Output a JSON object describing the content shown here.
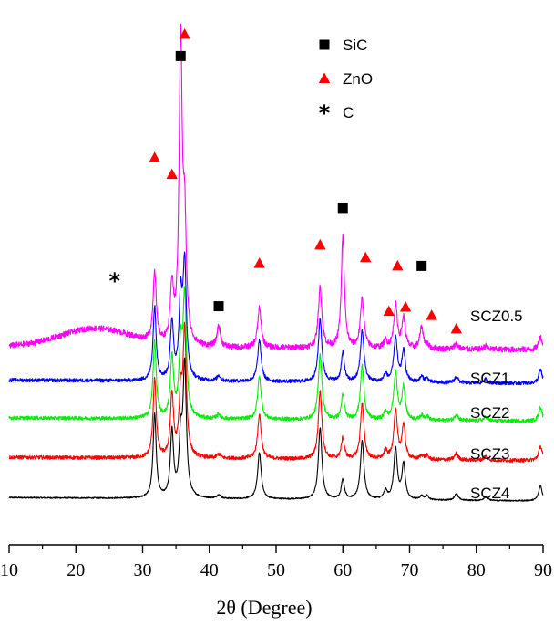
{
  "chart_data": {
    "type": "line",
    "title": "",
    "xlabel": "2θ (Degree)",
    "ylabel": "",
    "xlim": [
      10,
      90
    ],
    "xticks": [
      10,
      20,
      30,
      40,
      50,
      60,
      70,
      80,
      90
    ],
    "xtick_labels": [
      "10",
      "20",
      "30",
      "40",
      "50",
      "60",
      "70",
      "80",
      "90"
    ],
    "y_axis_visible": false,
    "grid": false,
    "legend_position": "top-right",
    "legend": [
      {
        "marker": "square",
        "label": "SiC",
        "color": "#000000"
      },
      {
        "marker": "triangle",
        "label": "ZnO",
        "color": "#ff0000"
      },
      {
        "marker": "asterisk",
        "label": "C",
        "color": "#000000"
      }
    ],
    "peaks": [
      {
        "pos": 31.8,
        "width": 0.28,
        "h": 1.0
      },
      {
        "pos": 34.4,
        "width": 0.28,
        "h": 0.78
      },
      {
        "pos": 35.7,
        "width": 0.28,
        "h": 0.7,
        "phase": "SiC"
      },
      {
        "pos": 36.3,
        "width": 0.3,
        "h": 1.55
      },
      {
        "pos": 41.4,
        "width": 0.3,
        "h": 0.05,
        "phase": "SiC"
      },
      {
        "pos": 47.5,
        "width": 0.32,
        "h": 0.55
      },
      {
        "pos": 56.6,
        "width": 0.32,
        "h": 0.85
      },
      {
        "pos": 60.0,
        "width": 0.28,
        "h": 0.26,
        "phase": "SiC"
      },
      {
        "pos": 62.9,
        "width": 0.32,
        "h": 0.7
      },
      {
        "pos": 66.4,
        "width": 0.3,
        "h": 0.1
      },
      {
        "pos": 67.9,
        "width": 0.32,
        "h": 0.6
      },
      {
        "pos": 69.1,
        "width": 0.3,
        "h": 0.42
      },
      {
        "pos": 71.8,
        "width": 0.3,
        "h": 0.05,
        "phase": "SiC"
      },
      {
        "pos": 72.6,
        "width": 0.3,
        "h": 0.05
      },
      {
        "pos": 77.0,
        "width": 0.32,
        "h": 0.08
      },
      {
        "pos": 81.4,
        "width": 0.32,
        "h": 0.05
      },
      {
        "pos": 89.6,
        "width": 0.32,
        "h": 0.18
      }
    ],
    "series": [
      {
        "name": "SCZ4",
        "color": "#000000",
        "offset": 0.0,
        "scale": 1.0,
        "noise": 0.008,
        "sic_factor": 0.9,
        "amorphous": 0.0
      },
      {
        "name": "SCZ3",
        "color": "#ff0000",
        "offset": 0.48,
        "scale": 0.95,
        "noise": 0.022,
        "sic_factor": 1.0,
        "amorphous": 0.0
      },
      {
        "name": "SCZ2",
        "color": "#00ee00",
        "offset": 0.95,
        "scale": 0.92,
        "noise": 0.022,
        "sic_factor": 1.2,
        "amorphous": 0.0
      },
      {
        "name": "SCZ1",
        "color": "#0000ff",
        "offset": 1.4,
        "scale": 0.88,
        "noise": 0.022,
        "sic_factor": 1.5,
        "amorphous": 0.0
      },
      {
        "name": "SCZ0.5",
        "color": "#ff00ff",
        "offset": 1.8,
        "scale": 0.85,
        "noise": 0.035,
        "sic_factor": 6.0,
        "amorphous": 0.22
      }
    ],
    "annotations": [
      {
        "marker": "square",
        "x": 35.7,
        "y": 5.3,
        "label": "SiC"
      },
      {
        "marker": "triangle",
        "x": 36.3,
        "y": 5.56,
        "label": "ZnO"
      },
      {
        "marker": "triangle",
        "x": 31.8,
        "y": 4.09,
        "label": "ZnO"
      },
      {
        "marker": "triangle",
        "x": 34.4,
        "y": 3.89,
        "label": "ZnO"
      },
      {
        "marker": "square",
        "x": 41.4,
        "y": 2.32,
        "label": "SiC"
      },
      {
        "marker": "triangle",
        "x": 47.5,
        "y": 2.83,
        "label": "ZnO"
      },
      {
        "marker": "triangle",
        "x": 56.6,
        "y": 3.05,
        "label": "ZnO"
      },
      {
        "marker": "square",
        "x": 60.0,
        "y": 3.49,
        "label": "SiC"
      },
      {
        "marker": "triangle",
        "x": 63.4,
        "y": 2.9,
        "label": "ZnO"
      },
      {
        "marker": "triangle",
        "x": 66.9,
        "y": 2.26,
        "label": "ZnO"
      },
      {
        "marker": "triangle",
        "x": 68.2,
        "y": 2.8,
        "label": "ZnO"
      },
      {
        "marker": "triangle",
        "x": 69.4,
        "y": 2.31,
        "label": "ZnO"
      },
      {
        "marker": "square",
        "x": 71.8,
        "y": 2.8,
        "label": "SiC"
      },
      {
        "marker": "triangle",
        "x": 73.3,
        "y": 2.21,
        "label": "ZnO"
      },
      {
        "marker": "triangle",
        "x": 77.0,
        "y": 2.05,
        "label": "ZnO"
      },
      {
        "marker": "asterisk",
        "x": 25.8,
        "y": 2.63,
        "label": "C"
      }
    ]
  }
}
